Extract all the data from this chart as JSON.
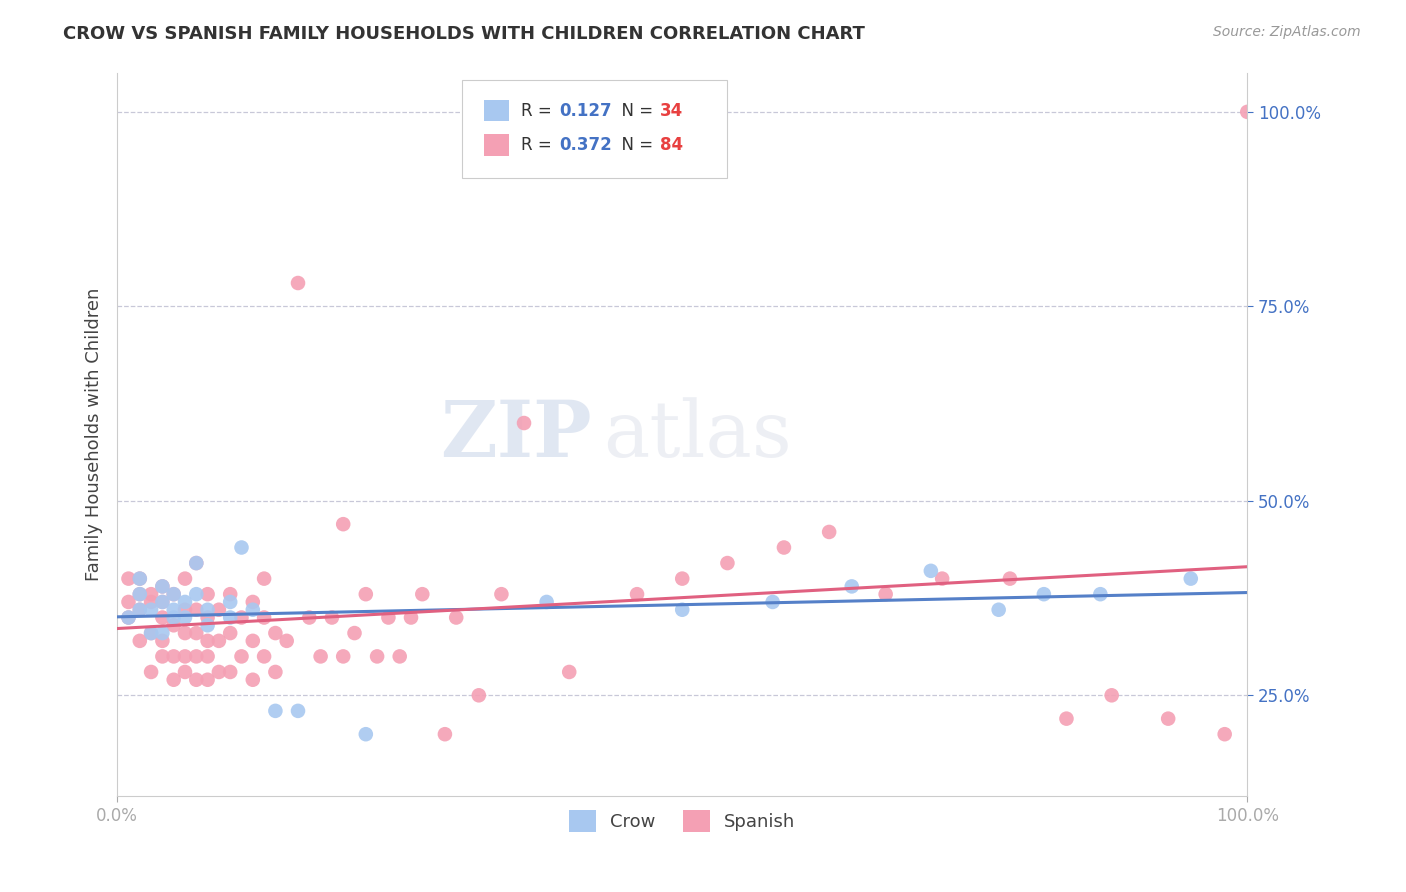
{
  "title": "CROW VS SPANISH FAMILY HOUSEHOLDS WITH CHILDREN CORRELATION CHART",
  "source": "Source: ZipAtlas.com",
  "ylabel": "Family Households with Children",
  "crow_R": 0.127,
  "crow_N": 34,
  "spanish_R": 0.372,
  "spanish_N": 84,
  "crow_color": "#a8c8f0",
  "spanish_color": "#f4a0b4",
  "crow_line_color": "#5580c8",
  "spanish_line_color": "#e06080",
  "background_color": "#ffffff",
  "grid_color": "#c8c8d8",
  "watermark_zip": "ZIP",
  "watermark_atlas": "atlas",
  "xlim": [
    0.0,
    1.0
  ],
  "ylim": [
    0.12,
    1.05
  ],
  "x_tick_labels": [
    "0.0%",
    "100.0%"
  ],
  "y_tick_labels_right": [
    "25.0%",
    "50.0%",
    "75.0%",
    "100.0%"
  ],
  "y_tick_values_right": [
    0.25,
    0.5,
    0.75,
    1.0
  ],
  "crow_scatter_x": [
    0.01,
    0.02,
    0.02,
    0.02,
    0.03,
    0.03,
    0.04,
    0.04,
    0.04,
    0.05,
    0.05,
    0.05,
    0.06,
    0.06,
    0.07,
    0.07,
    0.08,
    0.08,
    0.1,
    0.1,
    0.11,
    0.12,
    0.14,
    0.16,
    0.22,
    0.38,
    0.5,
    0.58,
    0.65,
    0.72,
    0.78,
    0.82,
    0.87,
    0.95
  ],
  "crow_scatter_y": [
    0.35,
    0.36,
    0.38,
    0.4,
    0.33,
    0.36,
    0.37,
    0.39,
    0.33,
    0.35,
    0.38,
    0.36,
    0.37,
    0.35,
    0.38,
    0.42,
    0.34,
    0.36,
    0.35,
    0.37,
    0.44,
    0.36,
    0.23,
    0.23,
    0.2,
    0.37,
    0.36,
    0.37,
    0.39,
    0.41,
    0.36,
    0.38,
    0.38,
    0.4
  ],
  "spanish_scatter_x": [
    0.01,
    0.01,
    0.01,
    0.02,
    0.02,
    0.02,
    0.02,
    0.03,
    0.03,
    0.03,
    0.03,
    0.04,
    0.04,
    0.04,
    0.04,
    0.04,
    0.05,
    0.05,
    0.05,
    0.05,
    0.06,
    0.06,
    0.06,
    0.06,
    0.06,
    0.07,
    0.07,
    0.07,
    0.07,
    0.07,
    0.08,
    0.08,
    0.08,
    0.08,
    0.08,
    0.09,
    0.09,
    0.09,
    0.1,
    0.1,
    0.1,
    0.11,
    0.11,
    0.12,
    0.12,
    0.12,
    0.13,
    0.13,
    0.13,
    0.14,
    0.14,
    0.15,
    0.16,
    0.17,
    0.18,
    0.19,
    0.2,
    0.2,
    0.21,
    0.22,
    0.23,
    0.24,
    0.25,
    0.26,
    0.27,
    0.29,
    0.3,
    0.32,
    0.34,
    0.36,
    0.4,
    0.46,
    0.5,
    0.54,
    0.59,
    0.63,
    0.68,
    0.73,
    0.79,
    0.84,
    0.88,
    0.93,
    0.98,
    1.0
  ],
  "spanish_scatter_y": [
    0.35,
    0.37,
    0.4,
    0.32,
    0.36,
    0.38,
    0.4,
    0.28,
    0.33,
    0.37,
    0.38,
    0.3,
    0.32,
    0.35,
    0.37,
    0.39,
    0.27,
    0.3,
    0.34,
    0.38,
    0.28,
    0.3,
    0.33,
    0.36,
    0.4,
    0.27,
    0.3,
    0.33,
    0.36,
    0.42,
    0.27,
    0.3,
    0.32,
    0.35,
    0.38,
    0.28,
    0.32,
    0.36,
    0.28,
    0.33,
    0.38,
    0.3,
    0.35,
    0.27,
    0.32,
    0.37,
    0.3,
    0.35,
    0.4,
    0.28,
    0.33,
    0.32,
    0.78,
    0.35,
    0.3,
    0.35,
    0.3,
    0.47,
    0.33,
    0.38,
    0.3,
    0.35,
    0.3,
    0.35,
    0.38,
    0.2,
    0.35,
    0.25,
    0.38,
    0.6,
    0.28,
    0.38,
    0.4,
    0.42,
    0.44,
    0.46,
    0.38,
    0.4,
    0.4,
    0.22,
    0.25,
    0.22,
    0.2,
    1.0
  ]
}
